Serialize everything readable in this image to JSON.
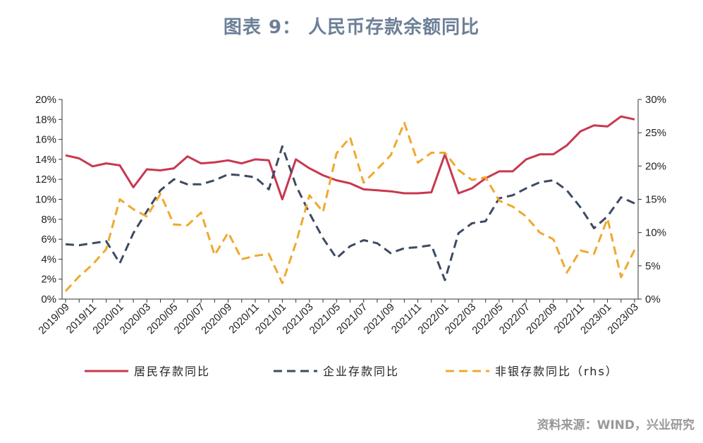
{
  "title": "图表 9：  人民币存款余额同比",
  "source": "资料来源：WIND，兴业研究",
  "chart_data": {
    "type": "line",
    "x": [
      "2019/09",
      "2019/10",
      "2019/11",
      "2019/12",
      "2020/01",
      "2020/02",
      "2020/03",
      "2020/04",
      "2020/05",
      "2020/06",
      "2020/07",
      "2020/08",
      "2020/09",
      "2020/10",
      "2020/11",
      "2020/12",
      "2021/01",
      "2021/02",
      "2021/03",
      "2021/04",
      "2021/05",
      "2021/06",
      "2021/07",
      "2021/08",
      "2021/09",
      "2021/10",
      "2021/11",
      "2021/12",
      "2022/01",
      "2022/02",
      "2022/03",
      "2022/04",
      "2022/05",
      "2022/06",
      "2022/07",
      "2022/08",
      "2022/09",
      "2022/10",
      "2022/11",
      "2022/12",
      "2023/01",
      "2023/02",
      "2023/03"
    ],
    "x_tick_labels": [
      "2019/09",
      "2019/11",
      "2020/01",
      "2020/03",
      "2020/05",
      "2020/07",
      "2020/09",
      "2020/11",
      "2021/01",
      "2021/03",
      "2021/05",
      "2021/07",
      "2021/09",
      "2021/11",
      "2022/01",
      "2022/03",
      "2022/05",
      "2022/07",
      "2022/09",
      "2022/11",
      "2023/01",
      "2023/03"
    ],
    "y_left": {
      "ticks": [
        "0%",
        "2%",
        "4%",
        "6%",
        "8%",
        "10%",
        "12%",
        "14%",
        "16%",
        "18%",
        "20%"
      ],
      "range": [
        0,
        20
      ]
    },
    "y_right": {
      "ticks": [
        "0%",
        "5%",
        "10%",
        "15%",
        "20%",
        "25%",
        "30%"
      ],
      "range": [
        0,
        30
      ]
    },
    "series": [
      {
        "name": "居民存款同比",
        "axis": "left",
        "color": "#c8384e",
        "dash": "solid",
        "values": [
          14.4,
          14.1,
          13.3,
          13.6,
          13.4,
          11.2,
          13.0,
          12.9,
          13.1,
          14.3,
          13.6,
          13.7,
          13.9,
          13.6,
          14.0,
          13.9,
          10.0,
          14.0,
          13.1,
          12.4,
          11.9,
          11.6,
          11.0,
          10.9,
          10.8,
          10.6,
          10.6,
          10.7,
          14.5,
          10.6,
          11.1,
          12.1,
          12.8,
          12.8,
          14.0,
          14.5,
          14.5,
          15.4,
          16.8,
          17.4,
          17.3,
          18.3,
          18.0
        ]
      },
      {
        "name": "企业存款同比",
        "axis": "left",
        "color": "#3d4a63",
        "dash": "dashed",
        "values": [
          5.5,
          5.4,
          5.6,
          5.8,
          3.6,
          6.6,
          8.8,
          10.9,
          12.0,
          11.5,
          11.5,
          11.9,
          12.5,
          12.4,
          12.2,
          11.0,
          15.3,
          11.4,
          8.6,
          6.1,
          4.1,
          5.3,
          5.9,
          5.6,
          4.6,
          5.1,
          5.2,
          5.4,
          1.9,
          6.6,
          7.6,
          7.8,
          10.1,
          10.4,
          11.1,
          11.7,
          11.9,
          10.9,
          9.2,
          7.1,
          8.3,
          10.2,
          9.6
        ]
      },
      {
        "name": "非银存款同比（rhs）",
        "axis": "right",
        "color": "#f0a82e",
        "dash": "dashed",
        "values": [
          1.2,
          3.4,
          5.2,
          7.5,
          15.0,
          13.5,
          12.4,
          15.8,
          11.2,
          11.1,
          13.0,
          6.6,
          10.0,
          6.0,
          6.5,
          6.8,
          2.4,
          8.4,
          15.6,
          13.1,
          21.9,
          24.3,
          17.5,
          19.5,
          21.6,
          26.5,
          20.5,
          22.0,
          22.0,
          19.4,
          17.9,
          18.3,
          14.8,
          13.9,
          12.4,
          10.0,
          9.0,
          4.0,
          7.3,
          6.8,
          12.1,
          3.3,
          7.4
        ]
      }
    ]
  }
}
